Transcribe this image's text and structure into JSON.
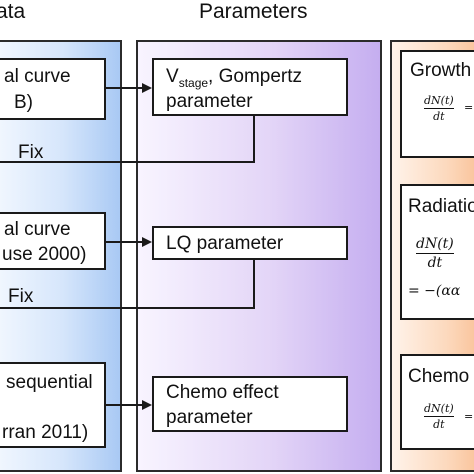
{
  "headings": {
    "data": "ata",
    "parameters": "Parameters"
  },
  "data_boxes": [
    {
      "line1": "al curve",
      "line2": "B)"
    },
    {
      "line1": "al curve",
      "line2": "use 2000)"
    },
    {
      "line1": "sequential",
      "line2": "rran 2011)"
    }
  ],
  "param_boxes": [
    {
      "sym": "V",
      "sub": "stage",
      "rest": ", Gompertz",
      "line2": "parameter"
    },
    {
      "line1": "LQ parameter"
    },
    {
      "line1": "Chemo effect",
      "line2": "parameter"
    }
  ],
  "fix_labels": [
    "Fix",
    "Fix"
  ],
  "models": [
    {
      "title": "Growth",
      "eq_num": "dN(t)",
      "eq_den": "dt",
      "eq_rhs": "="
    },
    {
      "title": "Radiatio",
      "eq_num": "dN(t)",
      "eq_den": "dt",
      "eq_rhs": "= −(αα"
    },
    {
      "title": "Chemo",
      "eq_num": "dN(t)",
      "eq_den": "dt",
      "eq_rhs": "="
    }
  ]
}
